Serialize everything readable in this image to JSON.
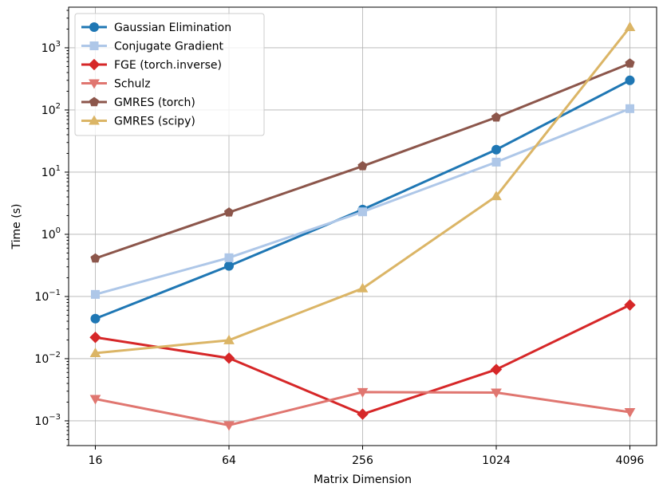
{
  "chart_data": {
    "type": "line",
    "title": "",
    "xlabel": "Matrix Dimension",
    "ylabel": "Time (s)",
    "x": [
      16,
      64,
      256,
      1024,
      4096
    ],
    "x_tick_labels": [
      "16",
      "64",
      "256",
      "1024",
      "4096"
    ],
    "x_scale": "log2",
    "y_scale": "log10",
    "ylim": [
      0.0004,
      4500
    ],
    "y_ticks": [
      {
        "value": 0.001,
        "base": "10",
        "exp": "−3"
      },
      {
        "value": 0.01,
        "base": "10",
        "exp": "−2"
      },
      {
        "value": 0.1,
        "base": "10",
        "exp": "−1"
      },
      {
        "value": 1,
        "base": "10",
        "exp": "0"
      },
      {
        "value": 10,
        "base": "10",
        "exp": "1"
      },
      {
        "value": 100,
        "base": "10",
        "exp": "2"
      },
      {
        "value": 1000,
        "base": "10",
        "exp": "3"
      }
    ],
    "grid": true,
    "legend_position": "top-left",
    "series": [
      {
        "name": "Gaussian Elimination",
        "color": "#1f77b4",
        "marker": "circle",
        "values": [
          0.044,
          0.31,
          2.5,
          23,
          300
        ]
      },
      {
        "name": "Conjugate Gradient",
        "color": "#aec7e8",
        "marker": "square",
        "values": [
          0.108,
          0.42,
          2.3,
          14.5,
          105
        ]
      },
      {
        "name": "FGE (torch.inverse)",
        "color": "#d62728",
        "marker": "diamond",
        "values": [
          0.022,
          0.0102,
          0.00128,
          0.0067,
          0.073
        ]
      },
      {
        "name": "Schulz",
        "color": "#e377c2",
        "display_color": "#e07670",
        "marker": "triangle-down",
        "values": [
          0.00225,
          0.00085,
          0.0029,
          0.00285,
          0.00138
        ]
      },
      {
        "name": "GMRES (torch)",
        "color": "#8c564b",
        "marker": "pentagon",
        "values": [
          0.41,
          2.25,
          12.5,
          76,
          560
        ]
      },
      {
        "name": "GMRES (scipy)",
        "color": "#dbb566",
        "marker": "triangle-up",
        "values": [
          0.0123,
          0.0198,
          0.135,
          4.1,
          2150
        ]
      }
    ]
  }
}
